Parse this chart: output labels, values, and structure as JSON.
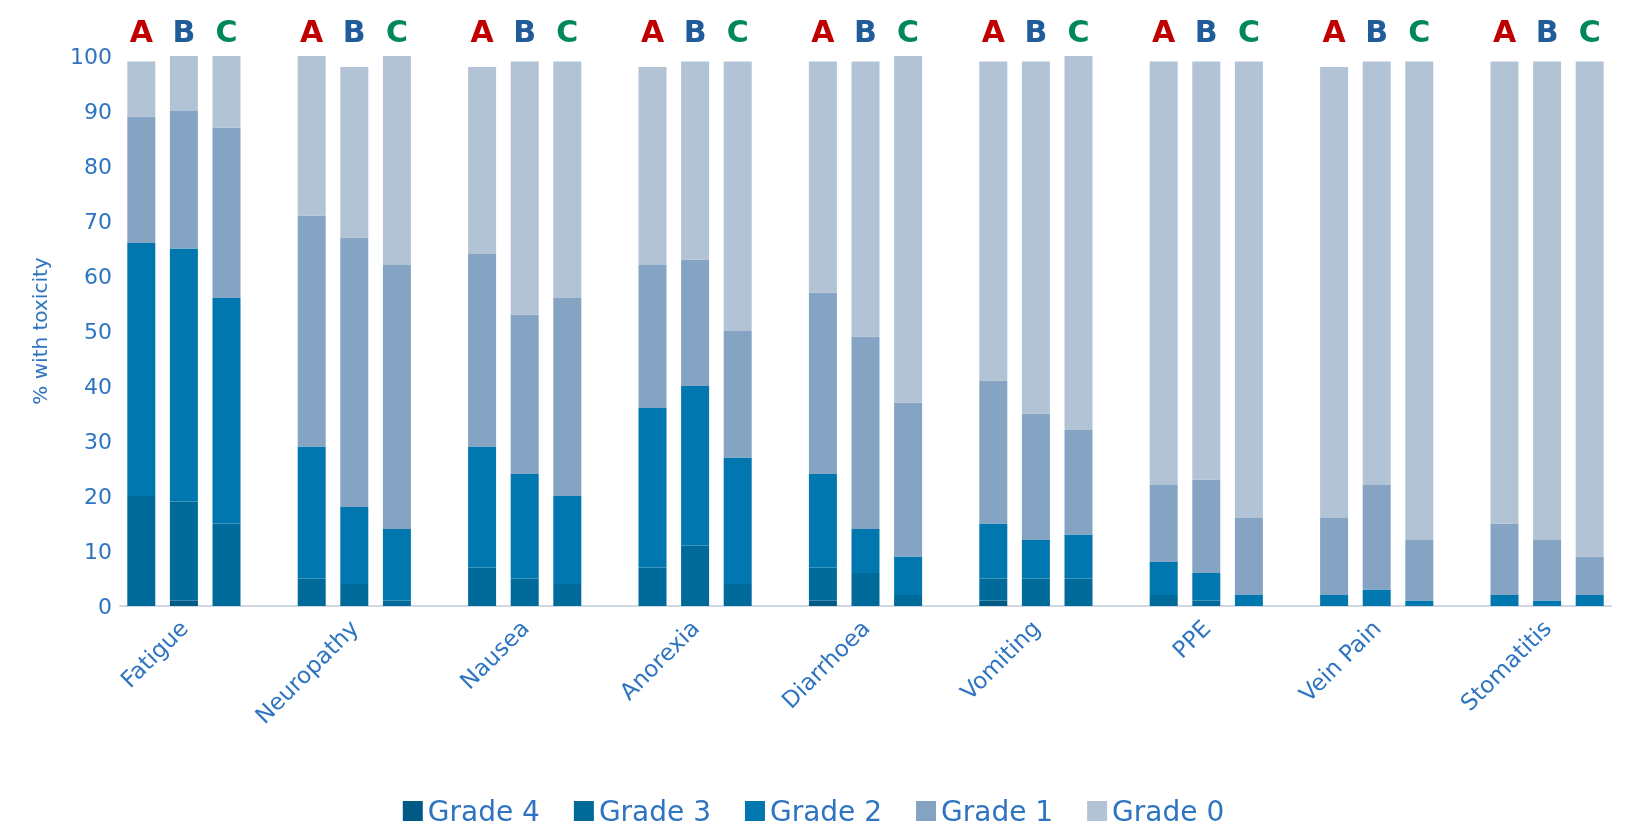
{
  "chart_data": {
    "type": "bar",
    "stacked": true,
    "ylabel": "% with toxicity",
    "categories": [
      null,
      "Fatigue",
      null,
      null,
      null,
      "Neuropathy",
      null,
      null,
      null,
      "Nausea",
      null,
      null,
      null,
      "Anorexia",
      null,
      null,
      null,
      "Diarrhoea",
      null,
      null,
      null,
      "Vomiting",
      null,
      null,
      null,
      "PPE",
      null,
      null,
      null,
      "Vein Pain",
      null,
      null,
      null,
      "Stomatitis",
      null
    ],
    "series": [
      {
        "name": "Grade 4",
        "color": "#005a86",
        "values": [
          0,
          1,
          0,
          null,
          0,
          0,
          0,
          null,
          0,
          0,
          0,
          null,
          0,
          0,
          0,
          null,
          1,
          0,
          0,
          null,
          1,
          0,
          0,
          null,
          0,
          0,
          0,
          null,
          0,
          0,
          0,
          null,
          0,
          0,
          0
        ]
      },
      {
        "name": "Grade 3",
        "color": "#006a9a",
        "values": [
          20,
          18,
          15,
          null,
          5,
          4,
          1,
          null,
          7,
          5,
          4,
          null,
          7,
          11,
          4,
          null,
          6,
          6,
          2,
          null,
          4,
          5,
          5,
          null,
          2,
          1,
          0,
          null,
          0,
          0,
          0,
          null,
          0,
          0,
          0
        ]
      },
      {
        "name": "Grade 2",
        "color": "#0077ae",
        "values": [
          46,
          46,
          41,
          null,
          24,
          14,
          13,
          null,
          22,
          19,
          16,
          null,
          29,
          29,
          23,
          null,
          17,
          8,
          7,
          null,
          10,
          7,
          8,
          null,
          6,
          5,
          2,
          null,
          2,
          3,
          1,
          null,
          2,
          1,
          2
        ]
      },
      {
        "name": "Grade 1",
        "color": "#85a4c3",
        "values": [
          23,
          25,
          31,
          null,
          42,
          49,
          48,
          null,
          35,
          29,
          36,
          null,
          26,
          23,
          23,
          null,
          33,
          35,
          28,
          null,
          26,
          23,
          19,
          null,
          14,
          17,
          14,
          null,
          14,
          19,
          11,
          null,
          13,
          11,
          7
        ]
      },
      {
        "name": "Grade 0",
        "color": "#b3c3d6",
        "values": [
          10,
          10,
          13,
          null,
          29,
          31,
          38,
          null,
          34,
          46,
          43,
          null,
          36,
          36,
          49,
          null,
          42,
          50,
          63,
          null,
          58,
          64,
          68,
          null,
          77,
          76,
          83,
          null,
          82,
          77,
          87,
          null,
          84,
          87,
          90
        ]
      }
    ],
    "ylim": [
      0,
      100
    ],
    "yticks": [
      0,
      10,
      20,
      30,
      40,
      50,
      60,
      70,
      80,
      90,
      100
    ],
    "legend": "bottom",
    "annotations": [
      "A",
      "B",
      "C",
      "A",
      "B",
      "C",
      "A",
      "B",
      "C",
      "A",
      "B",
      "C",
      "A",
      "B",
      "C",
      "A",
      "B",
      "C",
      "A",
      "B",
      "C",
      "A",
      "B",
      "C",
      "A",
      "B",
      "C"
    ]
  }
}
